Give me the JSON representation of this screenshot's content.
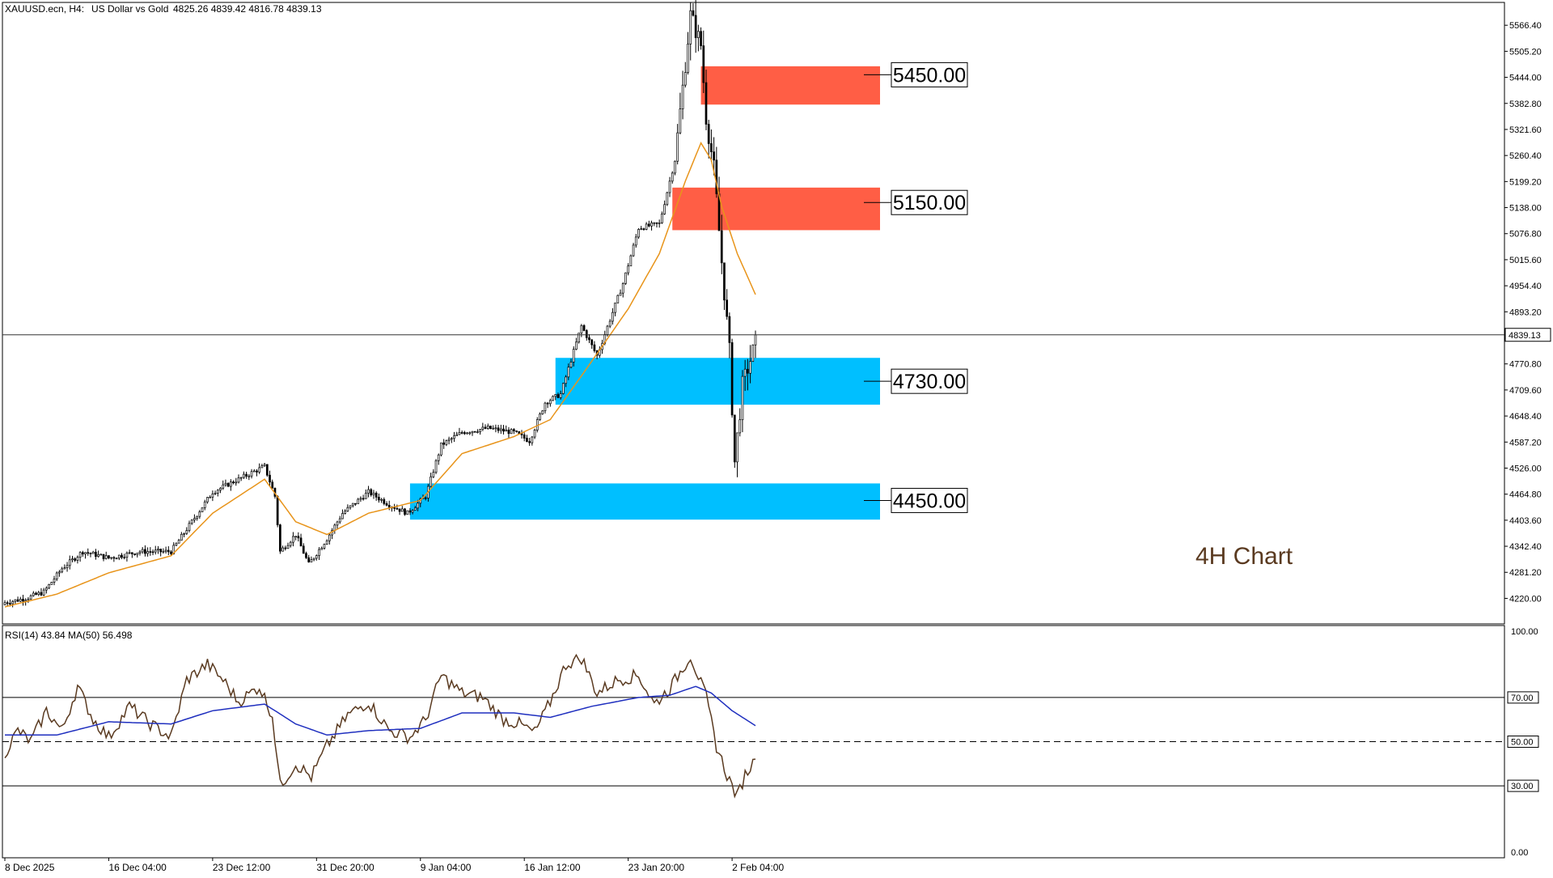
{
  "header": {
    "symbol": "XAUUSD.ecn, H4:",
    "description": "US Dollar vs Gold",
    "ohlc": "4825.26 4839.42 4816.78 4839.13"
  },
  "colors": {
    "candle": "#000000",
    "ma": "#e8941a",
    "resistance_zone": "#ff5e45",
    "support_zone": "#00bfff",
    "rsi_line": "#5a3a20",
    "rsi_ma_line": "#1f2fbf",
    "annotation": "#5a3a20"
  },
  "annotation_text": "4H Chart",
  "chart_data": [
    {
      "type": "candlestick",
      "ylim": [
        4160,
        5620
      ],
      "yticks": [
        5566.4,
        5505.2,
        5444.0,
        5382.8,
        5321.6,
        5260.4,
        5199.2,
        5138.0,
        5076.8,
        5015.6,
        4954.4,
        4893.2,
        4770.8,
        4709.6,
        4648.4,
        4587.2,
        4526.0,
        4464.8,
        4403.6,
        4342.4,
        4281.2,
        4220.0
      ],
      "ytick_labels": [
        "5566.40",
        "5505.20",
        "5444.00",
        "5382.80",
        "5321.60",
        "5260.40",
        "5199.20",
        "5138.00",
        "5076.80",
        "5015.60",
        "4954.40",
        "4893.20",
        "4770.80",
        "4709.60",
        "4648.40",
        "4587.20",
        "4526.00",
        "4464.80",
        "4403.60",
        "4342.40",
        "4281.20",
        "4220.00"
      ],
      "current_price": 4839.13,
      "current_price_label": "4839.13",
      "xticks": [
        {
          "label": "8 Dec 2025",
          "bar": 0
        },
        {
          "label": "16 Dec 04:00",
          "bar": 40
        },
        {
          "label": "23 Dec 12:00",
          "bar": 80
        },
        {
          "label": "31 Dec 20:00",
          "bar": 120
        },
        {
          "label": "9 Jan 04:00",
          "bar": 160
        },
        {
          "label": "16 Jan 12:00",
          "bar": 200
        },
        {
          "label": "23 Jan 20:00",
          "bar": 240
        },
        {
          "label": "2 Feb 04:00",
          "bar": 280
        }
      ],
      "bar_count": 290,
      "close_path": [
        {
          "bar": 0,
          "close": 4210
        },
        {
          "bar": 8,
          "close": 4220
        },
        {
          "bar": 15,
          "close": 4235
        },
        {
          "bar": 22,
          "close": 4290
        },
        {
          "bar": 30,
          "close": 4330
        },
        {
          "bar": 40,
          "close": 4315
        },
        {
          "bar": 52,
          "close": 4330
        },
        {
          "bar": 64,
          "close": 4330
        },
        {
          "bar": 72,
          "close": 4400
        },
        {
          "bar": 80,
          "close": 4470
        },
        {
          "bar": 90,
          "close": 4500
        },
        {
          "bar": 100,
          "close": 4530
        },
        {
          "bar": 104,
          "close": 4460
        },
        {
          "bar": 106,
          "close": 4330
        },
        {
          "bar": 112,
          "close": 4370
        },
        {
          "bar": 117,
          "close": 4300
        },
        {
          "bar": 124,
          "close": 4360
        },
        {
          "bar": 130,
          "close": 4420
        },
        {
          "bar": 140,
          "close": 4470
        },
        {
          "bar": 148,
          "close": 4440
        },
        {
          "bar": 155,
          "close": 4420
        },
        {
          "bar": 162,
          "close": 4460
        },
        {
          "bar": 168,
          "close": 4580
        },
        {
          "bar": 176,
          "close": 4610
        },
        {
          "bar": 186,
          "close": 4620
        },
        {
          "bar": 196,
          "close": 4610
        },
        {
          "bar": 202,
          "close": 4590
        },
        {
          "bar": 208,
          "close": 4680
        },
        {
          "bar": 214,
          "close": 4700
        },
        {
          "bar": 222,
          "close": 4860
        },
        {
          "bar": 228,
          "close": 4790
        },
        {
          "bar": 238,
          "close": 4960
        },
        {
          "bar": 244,
          "close": 5090
        },
        {
          "bar": 252,
          "close": 5100
        },
        {
          "bar": 258,
          "close": 5250
        },
        {
          "bar": 264,
          "close": 5590
        },
        {
          "bar": 268,
          "close": 5520
        },
        {
          "bar": 270,
          "close": 5350
        },
        {
          "bar": 273,
          "close": 5230
        },
        {
          "bar": 276,
          "close": 5010
        },
        {
          "bar": 279,
          "close": 4800
        },
        {
          "bar": 281,
          "close": 4540
        },
        {
          "bar": 284,
          "close": 4720
        },
        {
          "bar": 287,
          "close": 4780
        },
        {
          "bar": 290,
          "close": 4839
        }
      ],
      "ma_path": [
        {
          "bar": 0,
          "value": 4200
        },
        {
          "bar": 20,
          "value": 4230
        },
        {
          "bar": 40,
          "value": 4280
        },
        {
          "bar": 64,
          "value": 4320
        },
        {
          "bar": 80,
          "value": 4420
        },
        {
          "bar": 100,
          "value": 4500
        },
        {
          "bar": 112,
          "value": 4400
        },
        {
          "bar": 124,
          "value": 4370
        },
        {
          "bar": 140,
          "value": 4420
        },
        {
          "bar": 160,
          "value": 4450
        },
        {
          "bar": 176,
          "value": 4560
        },
        {
          "bar": 196,
          "value": 4600
        },
        {
          "bar": 210,
          "value": 4640
        },
        {
          "bar": 224,
          "value": 4760
        },
        {
          "bar": 240,
          "value": 4900
        },
        {
          "bar": 252,
          "value": 5030
        },
        {
          "bar": 262,
          "value": 5200
        },
        {
          "bar": 268,
          "value": 5290
        },
        {
          "bar": 272,
          "value": 5250
        },
        {
          "bar": 276,
          "value": 5140
        },
        {
          "bar": 282,
          "value": 5030
        },
        {
          "bar": 290,
          "value": 4920
        }
      ],
      "zones": [
        {
          "label": "5450.00",
          "level": 5450,
          "low": 5380,
          "high": 5470,
          "start_bar": 268,
          "kind": "resistance"
        },
        {
          "label": "5150.00",
          "level": 5150,
          "low": 5085,
          "high": 5185,
          "start_bar": 257,
          "kind": "resistance"
        },
        {
          "label": "4730.00",
          "level": 4730,
          "low": 4675,
          "high": 4785,
          "start_bar": 212,
          "kind": "support"
        },
        {
          "label": "4450.00",
          "level": 4450,
          "low": 4405,
          "high": 4490,
          "start_bar": 156,
          "kind": "support"
        }
      ]
    },
    {
      "type": "line",
      "title": "RSI(14) 43.84 MA(50) 56.498",
      "ylim": [
        0,
        100
      ],
      "yticks": [
        100,
        70,
        50,
        30,
        0
      ],
      "ytick_labels": [
        "100.00",
        "70.00",
        "50.00",
        "30.00",
        "0.00"
      ],
      "levels": [
        70,
        50,
        30
      ],
      "rsi_path": [
        {
          "bar": 0,
          "value": 45
        },
        {
          "bar": 5,
          "value": 55
        },
        {
          "bar": 10,
          "value": 50
        },
        {
          "bar": 16,
          "value": 64
        },
        {
          "bar": 22,
          "value": 55
        },
        {
          "bar": 28,
          "value": 75
        },
        {
          "bar": 34,
          "value": 60
        },
        {
          "bar": 40,
          "value": 52
        },
        {
          "bar": 48,
          "value": 66
        },
        {
          "bar": 56,
          "value": 58
        },
        {
          "bar": 64,
          "value": 52
        },
        {
          "bar": 70,
          "value": 78
        },
        {
          "bar": 78,
          "value": 85
        },
        {
          "bar": 84,
          "value": 78
        },
        {
          "bar": 90,
          "value": 68
        },
        {
          "bar": 98,
          "value": 75
        },
        {
          "bar": 103,
          "value": 62
        },
        {
          "bar": 106,
          "value": 30
        },
        {
          "bar": 112,
          "value": 40
        },
        {
          "bar": 118,
          "value": 34
        },
        {
          "bar": 124,
          "value": 48
        },
        {
          "bar": 132,
          "value": 62
        },
        {
          "bar": 140,
          "value": 68
        },
        {
          "bar": 148,
          "value": 55
        },
        {
          "bar": 156,
          "value": 52
        },
        {
          "bar": 162,
          "value": 60
        },
        {
          "bar": 168,
          "value": 80
        },
        {
          "bar": 176,
          "value": 72
        },
        {
          "bar": 184,
          "value": 70
        },
        {
          "bar": 192,
          "value": 60
        },
        {
          "bar": 198,
          "value": 58
        },
        {
          "bar": 204,
          "value": 54
        },
        {
          "bar": 210,
          "value": 68
        },
        {
          "bar": 216,
          "value": 85
        },
        {
          "bar": 222,
          "value": 88
        },
        {
          "bar": 228,
          "value": 72
        },
        {
          "bar": 236,
          "value": 78
        },
        {
          "bar": 244,
          "value": 80
        },
        {
          "bar": 250,
          "value": 67
        },
        {
          "bar": 256,
          "value": 74
        },
        {
          "bar": 264,
          "value": 89
        },
        {
          "bar": 270,
          "value": 70
        },
        {
          "bar": 274,
          "value": 48
        },
        {
          "bar": 278,
          "value": 35
        },
        {
          "bar": 282,
          "value": 25
        },
        {
          "bar": 285,
          "value": 35
        },
        {
          "bar": 290,
          "value": 43.84
        }
      ],
      "rsi_ma_path": [
        {
          "bar": 0,
          "value": 53
        },
        {
          "bar": 20,
          "value": 53
        },
        {
          "bar": 40,
          "value": 59
        },
        {
          "bar": 64,
          "value": 58
        },
        {
          "bar": 80,
          "value": 64
        },
        {
          "bar": 100,
          "value": 67
        },
        {
          "bar": 112,
          "value": 58
        },
        {
          "bar": 124,
          "value": 53
        },
        {
          "bar": 140,
          "value": 55
        },
        {
          "bar": 160,
          "value": 56
        },
        {
          "bar": 176,
          "value": 63
        },
        {
          "bar": 196,
          "value": 63
        },
        {
          "bar": 210,
          "value": 61
        },
        {
          "bar": 226,
          "value": 66
        },
        {
          "bar": 244,
          "value": 70
        },
        {
          "bar": 256,
          "value": 71
        },
        {
          "bar": 266,
          "value": 75
        },
        {
          "bar": 272,
          "value": 72
        },
        {
          "bar": 280,
          "value": 64
        },
        {
          "bar": 290,
          "value": 56.5
        }
      ]
    }
  ]
}
